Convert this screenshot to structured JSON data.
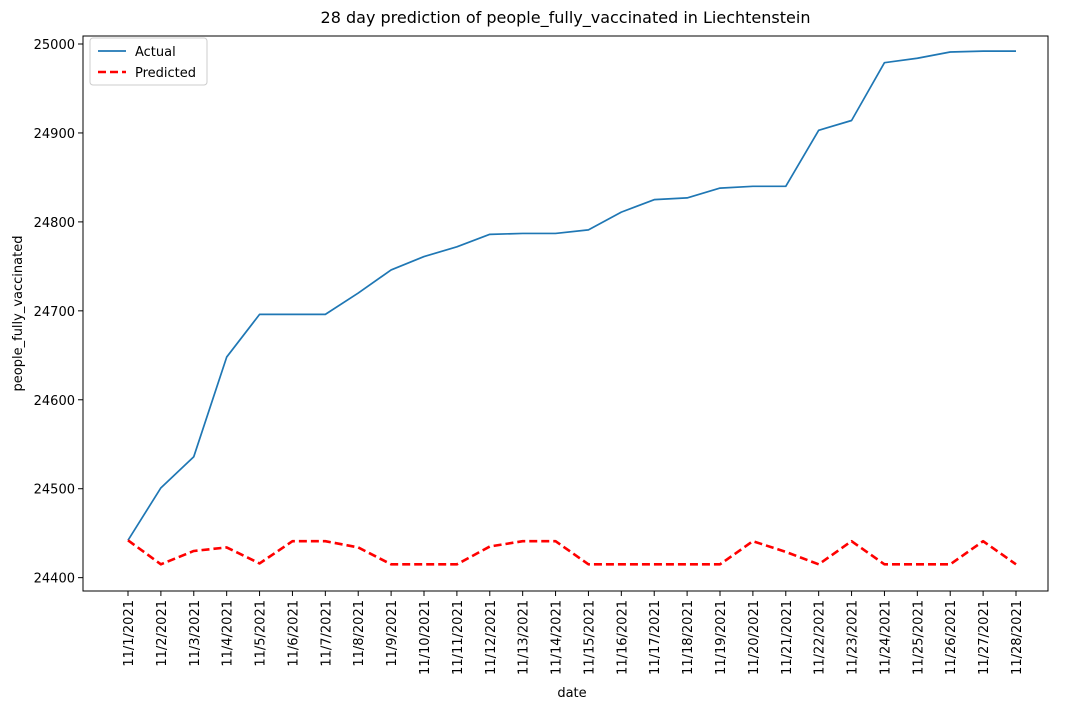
{
  "chart_data": {
    "type": "line",
    "title": "28 day prediction of people_fully_vaccinated in Liechtenstein",
    "xlabel": "date",
    "ylabel": "people_fully_vaccinated",
    "categories": [
      "11/1/2021",
      "11/2/2021",
      "11/3/2021",
      "11/4/2021",
      "11/5/2021",
      "11/6/2021",
      "11/7/2021",
      "11/8/2021",
      "11/9/2021",
      "11/10/2021",
      "11/11/2021",
      "11/12/2021",
      "11/13/2021",
      "11/14/2021",
      "11/15/2021",
      "11/16/2021",
      "11/17/2021",
      "11/18/2021",
      "11/19/2021",
      "11/20/2021",
      "11/21/2021",
      "11/22/2021",
      "11/23/2021",
      "11/24/2021",
      "11/25/2021",
      "11/26/2021",
      "11/27/2021",
      "11/28/2021"
    ],
    "yticks": [
      24400,
      24500,
      24600,
      24700,
      24800,
      24900,
      25000
    ],
    "ylim": [
      24385,
      25009
    ],
    "grid": false,
    "legend_position": "top-left",
    "series": [
      {
        "name": "Actual",
        "color": "#1f77b4",
        "style": "solid",
        "values": [
          24442,
          24501,
          24536,
          24648,
          24696,
          24696,
          24696,
          24720,
          24746,
          24761,
          24772,
          24786,
          24787,
          24787,
          24791,
          24811,
          24825,
          24827,
          24838,
          24840,
          24840,
          24903,
          24914,
          24979,
          24984,
          24991,
          24992,
          24992
        ]
      },
      {
        "name": "Predicted",
        "color": "#ff0000",
        "style": "dashed",
        "values": [
          24442,
          24415,
          24430,
          24434,
          24416,
          24441,
          24441,
          24434,
          24415,
          24415,
          24415,
          24435,
          24441,
          24441,
          24415,
          24415,
          24415,
          24415,
          24415,
          24441,
          24429,
          24415,
          24441,
          24415,
          24415,
          24415,
          24441,
          24415
        ]
      }
    ]
  }
}
